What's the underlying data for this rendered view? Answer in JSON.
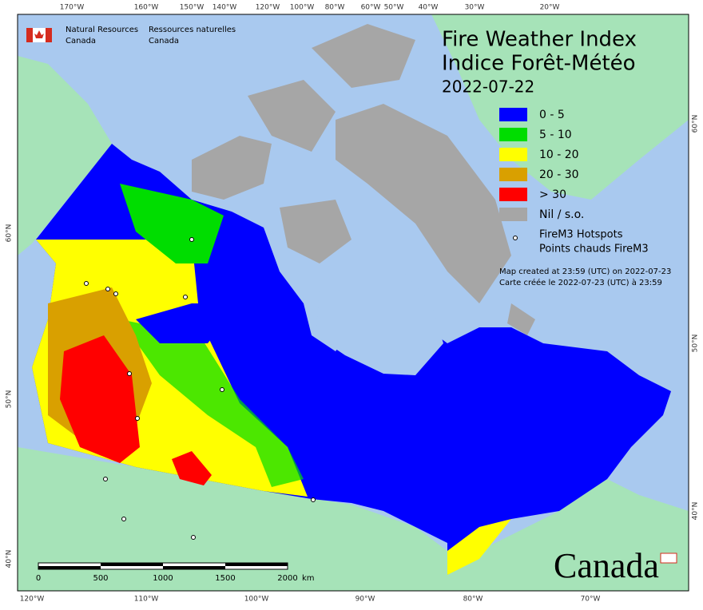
{
  "header": {
    "agency_en": [
      "Natural Resources",
      "Canada"
    ],
    "agency_fr": [
      "Ressources naturelles",
      "Canada"
    ]
  },
  "title": {
    "en": "Fire Weather Index",
    "fr": "Indice Forêt-Météo",
    "date": "2022-07-22"
  },
  "legend": {
    "items": [
      {
        "label": "0 - 5",
        "color": "#0000ff"
      },
      {
        "label": "5 - 10",
        "color": "#00dd00"
      },
      {
        "label": "10 - 20",
        "color": "#ffff00"
      },
      {
        "label": "20 - 30",
        "color": "#d9a000"
      },
      {
        "label": "> 30",
        "color": "#ff0000"
      },
      {
        "label": "Nil / s.o.",
        "color": "#a6a6a6"
      }
    ],
    "hotspots": [
      "FireM3 Hotspots",
      "Points chauds FireM3"
    ]
  },
  "credits": [
    "Map created at 23:59 (UTC) on 2022-07-23",
    "Carte créée le 2022-07-23 (UTC) à 23:59"
  ],
  "graticule": {
    "top": [
      "170°W",
      "160°W",
      "150°W",
      "140°W",
      "120°W",
      "100°W",
      "80°W",
      "60°W",
      "50°W",
      "40°W",
      "30°W",
      "20°W"
    ],
    "bottom": [
      "120°W",
      "110°W",
      "100°W",
      "90°W",
      "80°W",
      "70°W"
    ],
    "left": [
      "60°N",
      "50°N",
      "40°N"
    ],
    "right": [
      "60°N",
      "50°N",
      "40°N"
    ]
  },
  "scale_bar": {
    "ticks": [
      "0",
      "500",
      "1000",
      "1500",
      "2000"
    ],
    "unit": "km"
  },
  "wordmark": "Canada"
}
